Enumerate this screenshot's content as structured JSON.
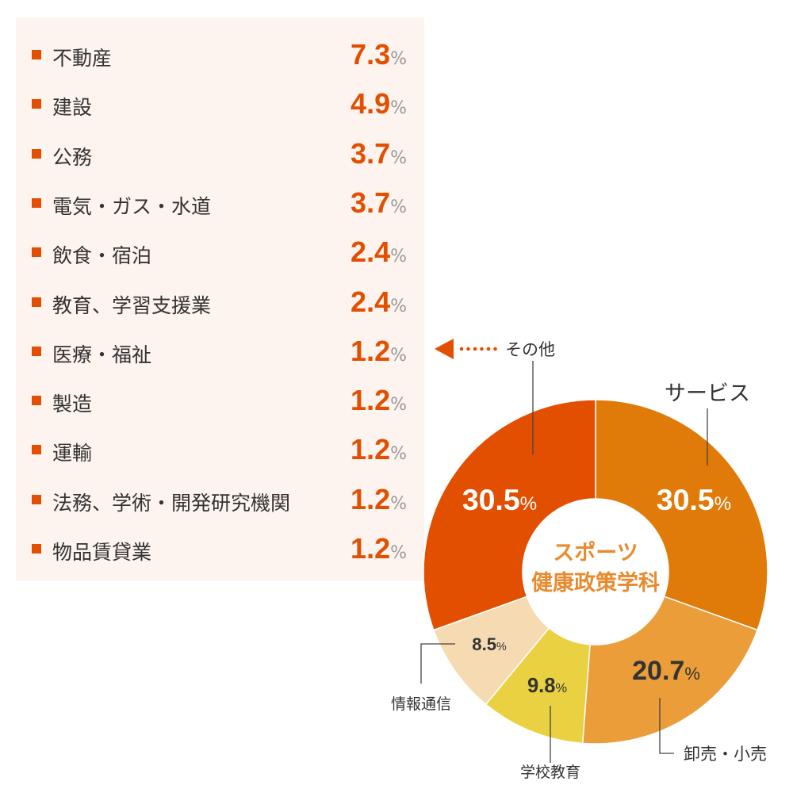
{
  "legend_items": [
    {
      "label": "不動産",
      "value": "7.3",
      "unit": "%"
    },
    {
      "label": "建設",
      "value": "4.9",
      "unit": "%"
    },
    {
      "label": "公務",
      "value": "3.7",
      "unit": "%"
    },
    {
      "label": "電気・ガス・水道",
      "value": "3.7",
      "unit": "%"
    },
    {
      "label": "飲食・宿泊",
      "value": "2.4",
      "unit": "%"
    },
    {
      "label": "教育、学習支援業",
      "value": "2.4",
      "unit": "%"
    },
    {
      "label": "医療・福祉",
      "value": "1.2",
      "unit": "%"
    },
    {
      "label": "製造",
      "value": "1.2",
      "unit": "%"
    },
    {
      "label": "運輸",
      "value": "1.2",
      "unit": "%"
    },
    {
      "label": "法務、学術・開発研究機関",
      "value": "1.2",
      "unit": "%"
    },
    {
      "label": "物品賃貸業",
      "value": "1.2",
      "unit": "%"
    }
  ],
  "chart_data": {
    "type": "pie",
    "donut": true,
    "center_title": [
      "スポーツ",
      "健康政策学科"
    ],
    "slices": [
      {
        "name": "サービス",
        "value": 30.5,
        "color": "#e07b0a",
        "label_color": "#ffffff"
      },
      {
        "name": "卸売・小売",
        "value": 20.7,
        "color": "#eb9d3a",
        "label_color": "#333333"
      },
      {
        "name": "学校教育",
        "value": 9.8,
        "color": "#e9d142",
        "label_color": "#333333"
      },
      {
        "name": "情報通信",
        "value": 8.5,
        "color": "#f6dbb2",
        "label_color": "#333333"
      },
      {
        "name": "その他",
        "value": 30.5,
        "color": "#e34f00",
        "label_color": "#ffffff"
      }
    ],
    "unit": "%"
  },
  "colors": {
    "accent": "#e34f00",
    "center_text": "#e88a2e",
    "panel_bg": "#fdf3ef"
  }
}
